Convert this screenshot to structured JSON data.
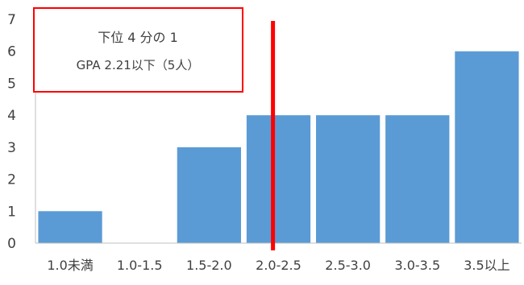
{
  "chart_data": {
    "type": "bar",
    "categories": [
      "1.0未満",
      "1.0-1.5",
      "1.5-2.0",
      "2.0-2.5",
      "2.5-3.0",
      "3.0-3.5",
      "3.5以上"
    ],
    "values": [
      1,
      0,
      3,
      4,
      4,
      4,
      6
    ],
    "ylim": [
      0,
      7
    ],
    "yticks": [
      "0",
      "1",
      "2",
      "3",
      "4",
      "5",
      "6",
      "7"
    ],
    "grid": false,
    "legend": "none",
    "bar_color": "#5b9bd5",
    "axis_color": "#bfbfbf",
    "annotation": {
      "line1": "下位 4 分の 1",
      "line2": "GPA 2.21以下（5人）",
      "box_color": "#ff0000"
    },
    "marker_line": {
      "value": 2.21,
      "color": "#ff0000"
    }
  }
}
